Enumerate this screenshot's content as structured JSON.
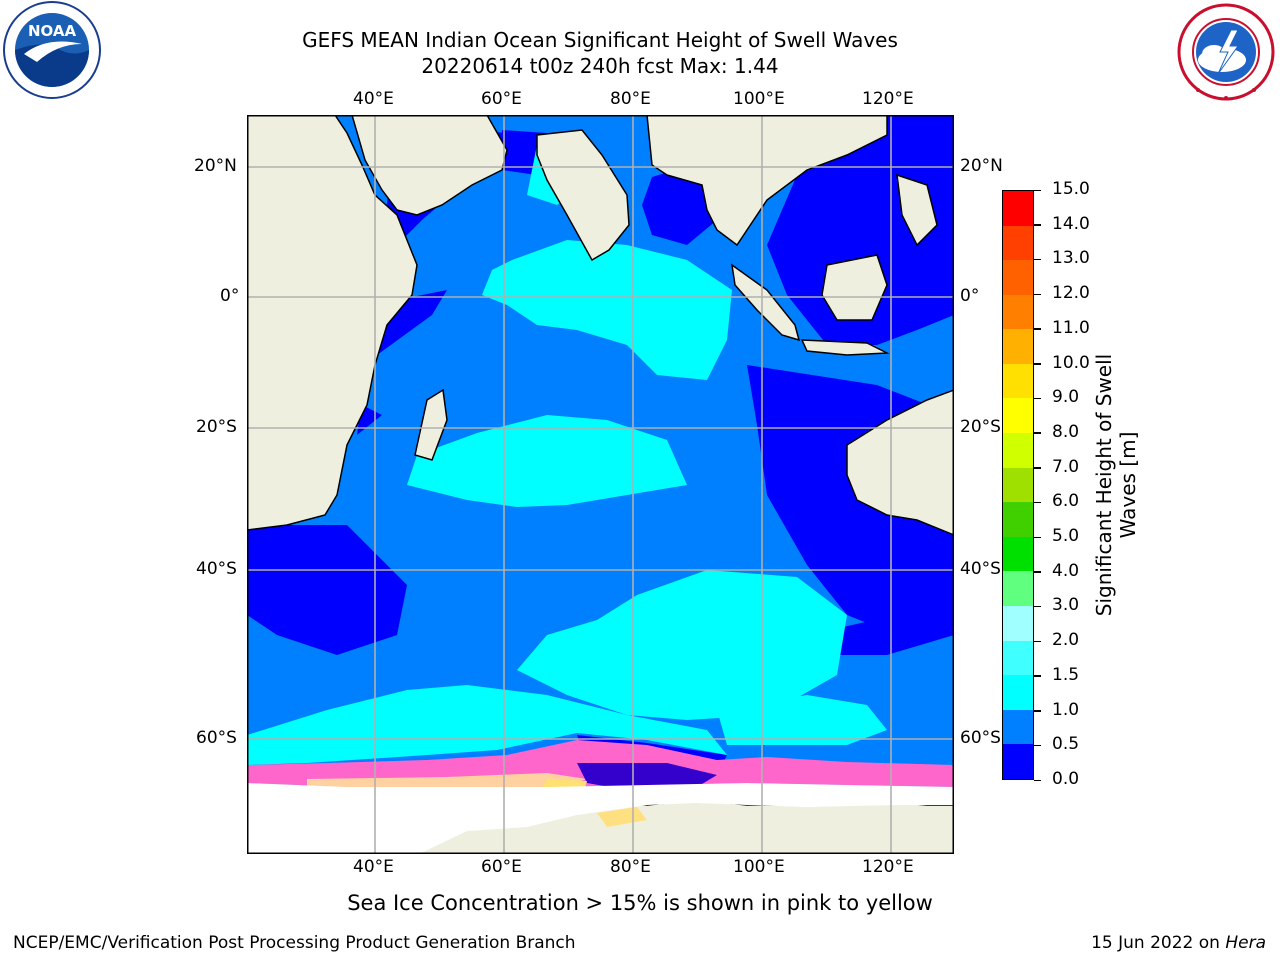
{
  "header": {
    "title_line1": "GEFS MEAN Indian Ocean Significant Height of Swell Waves",
    "title_line2": "20220614 t00z 240h fcst   Max: 1.44"
  },
  "logos": {
    "left": {
      "name": "noaa-logo",
      "text": "NOAA",
      "ring_text": "NATIONAL OCEANIC AND ATMOSPHERIC ADMINISTRATION · U.S. DEPARTMENT OF COMMERCE"
    },
    "right": {
      "name": "nws-logo",
      "ring_text": "NATIONAL WEATHER SERVICE"
    }
  },
  "map": {
    "lon_range": [
      20,
      130
    ],
    "lat_range": [
      -73,
      27
    ],
    "lon_ticks": [
      "40°E",
      "60°E",
      "80°E",
      "100°E",
      "120°E"
    ],
    "lat_ticks": [
      "20°N",
      "0°",
      "20°S",
      "40°S",
      "60°S"
    ],
    "land_color": "#efefdf",
    "ice_note": "Sea Ice Concentration > 15% is shown in pink to yellow"
  },
  "colorbar": {
    "label_line1": "Significant Height of Swell",
    "label_line2": "Waves [m]",
    "ticks": [
      "0.0",
      "0.5",
      "1.0",
      "1.5",
      "2.0",
      "3.0",
      "4.0",
      "5.0",
      "6.0",
      "7.0",
      "8.0",
      "9.0",
      "10.0",
      "11.0",
      "12.0",
      "13.0",
      "14.0",
      "15.0"
    ],
    "colors": [
      "#0000ff",
      "#0080ff",
      "#00ffff",
      "#40ffff",
      "#a0ffff",
      "#60ff80",
      "#00e000",
      "#40d000",
      "#a0e000",
      "#d0ff00",
      "#ffff00",
      "#ffe000",
      "#ffb000",
      "#ff8000",
      "#ff6000",
      "#ff4000",
      "#ff0000"
    ]
  },
  "footer": {
    "left": "NCEP/EMC/Verification Post Processing Product Generation Branch",
    "right_prefix": "15 Jun 2022 on ",
    "right_host": "Hera"
  }
}
